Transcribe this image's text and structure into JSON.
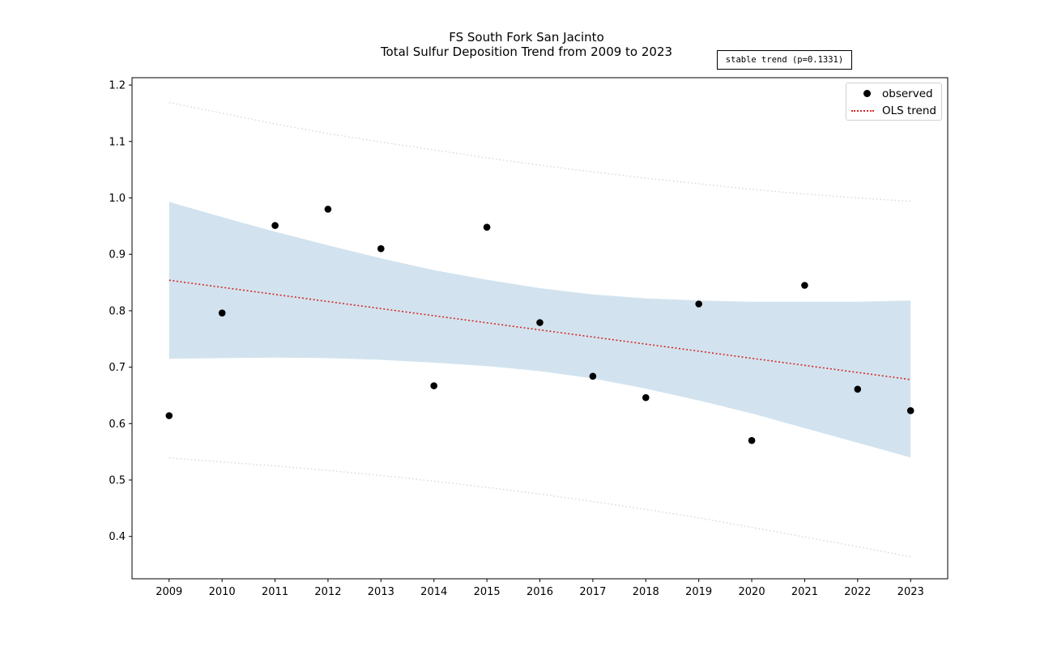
{
  "chart_data": {
    "type": "scatter",
    "title": "FS South Fork San Jacinto",
    "subtitle": "Total Sulfur Deposition Trend from 2009 to 2023",
    "annotation": "stable trend (p=0.1331)",
    "xlabel": "",
    "ylabel": "",
    "xlim": [
      2008.3,
      2023.7
    ],
    "ylim": [
      0.325,
      1.213
    ],
    "x_ticks": [
      2009,
      2010,
      2011,
      2012,
      2013,
      2014,
      2015,
      2016,
      2017,
      2018,
      2019,
      2020,
      2021,
      2022,
      2023
    ],
    "y_ticks": [
      0.4,
      0.5,
      0.6,
      0.7,
      0.8,
      0.9,
      1.0,
      1.1,
      1.2
    ],
    "y_tick_labels": [
      "0.4",
      "0.5",
      "0.6",
      "0.7",
      "0.8",
      "0.9",
      "1.0",
      "1.1",
      "1.2"
    ],
    "grid": false,
    "legend": {
      "position": "upper-right",
      "entries": [
        {
          "label": "observed",
          "marker": "dot",
          "color": "#000000"
        },
        {
          "label": "OLS trend",
          "marker": "dotted-line",
          "color": "#d62728"
        }
      ]
    },
    "series": [
      {
        "name": "observed",
        "kind": "points",
        "color": "#000000",
        "x": [
          2009,
          2010,
          2011,
          2012,
          2013,
          2014,
          2015,
          2016,
          2017,
          2018,
          2019,
          2020,
          2021,
          2022,
          2023
        ],
        "y": [
          0.614,
          0.796,
          0.951,
          0.98,
          0.91,
          0.667,
          0.948,
          0.779,
          0.684,
          0.646,
          0.812,
          0.57,
          0.845,
          0.661,
          0.623
        ]
      },
      {
        "name": "OLS trend",
        "kind": "line",
        "style": "dotted",
        "color": "#d62728",
        "x": [
          2009,
          2023
        ],
        "y": [
          0.854,
          0.678
        ]
      },
      {
        "kind": "band",
        "color": "#a6c8e0",
        "x": [
          2009,
          2010,
          2011,
          2012,
          2013,
          2014,
          2015,
          2016,
          2017,
          2018,
          2019,
          2020,
          2021,
          2022,
          2023
        ],
        "upper": [
          0.993,
          0.966,
          0.94,
          0.916,
          0.893,
          0.872,
          0.855,
          0.84,
          0.829,
          0.822,
          0.818,
          0.816,
          0.816,
          0.816,
          0.818
        ],
        "lower": [
          0.715,
          0.716,
          0.717,
          0.716,
          0.713,
          0.708,
          0.702,
          0.693,
          0.68,
          0.662,
          0.641,
          0.618,
          0.592,
          0.566,
          0.54
        ]
      },
      {
        "kind": "bound",
        "style": "dotted",
        "color": "#d9d9d9",
        "x": [
          2009,
          2010,
          2011,
          2012,
          2013,
          2014,
          2015,
          2016,
          2017,
          2018,
          2019,
          2020,
          2021,
          2022,
          2023
        ],
        "y": [
          1.169,
          1.15,
          1.131,
          1.114,
          1.099,
          1.085,
          1.071,
          1.058,
          1.046,
          1.035,
          1.025,
          1.015,
          1.007,
          1.0,
          0.994
        ]
      },
      {
        "kind": "bound",
        "style": "dotted",
        "color": "#d9d9d9",
        "x": [
          2009,
          2010,
          2011,
          2012,
          2013,
          2014,
          2015,
          2016,
          2017,
          2018,
          2019,
          2020,
          2021,
          2022,
          2023
        ],
        "y": [
          0.539,
          0.532,
          0.525,
          0.517,
          0.508,
          0.498,
          0.487,
          0.475,
          0.462,
          0.448,
          0.433,
          0.416,
          0.399,
          0.382,
          0.364
        ]
      }
    ]
  }
}
